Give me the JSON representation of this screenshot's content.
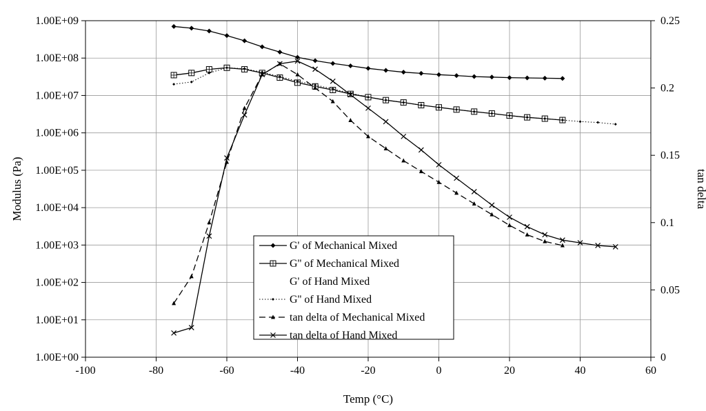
{
  "chart_data": {
    "type": "line",
    "title": "",
    "xlabel": "Temp (°C)",
    "ylabel": "Modulus (Pa)",
    "y2label": "tan delta",
    "xlim": [
      -100,
      60
    ],
    "ylim": [
      1,
      1000000000
    ],
    "y2lim": [
      0,
      0.25
    ],
    "yscale": "log",
    "grid": true,
    "legend_position": "center-left",
    "x_ticks": [
      -100,
      -80,
      -60,
      -40,
      -20,
      0,
      20,
      40,
      60
    ],
    "x_tick_labels": [
      "-100",
      "-80",
      "-60",
      "-40",
      "-20",
      "0",
      "20",
      "40",
      "60"
    ],
    "y_ticks": [
      1,
      10,
      100,
      1000,
      10000,
      100000,
      1000000,
      10000000,
      100000000,
      1000000000
    ],
    "y_tick_labels": [
      "1.00E+00",
      "1.00E+01",
      "1.00E+02",
      "1.00E+03",
      "1.00E+04",
      "1.00E+05",
      "1.00E+06",
      "1.00E+07",
      "1.00E+08",
      "1.00E+09"
    ],
    "y2_ticks": [
      0,
      0.05,
      0.1,
      0.15,
      0.2,
      0.25
    ],
    "y2_tick_labels": [
      "0",
      "0.05",
      "0.1",
      "0.15",
      "0.2",
      "0.25"
    ],
    "series": [
      {
        "name": "G' of Mechanical Mixed",
        "axis": "left",
        "marker": "diamond",
        "line": "solid",
        "x": [
          -75,
          -70,
          -65,
          -60,
          -55,
          -50,
          -45,
          -40,
          -35,
          -30,
          -25,
          -20,
          -15,
          -10,
          -5,
          0,
          5,
          10,
          15,
          20,
          25,
          30,
          35
        ],
        "y": [
          700000000,
          630000000,
          530000000,
          400000000,
          290000000,
          200000000,
          145000000,
          105000000,
          85000000,
          72000000,
          62000000,
          53000000,
          47000000,
          42000000,
          39000000,
          36000000,
          34000000,
          32000000,
          31000000,
          30000000,
          29500000,
          29000000,
          28500000
        ]
      },
      {
        "name": "G'' of Mechanical Mixed",
        "axis": "left",
        "marker": "square",
        "line": "solid",
        "x": [
          -75,
          -70,
          -65,
          -60,
          -55,
          -50,
          -45,
          -40,
          -35,
          -30,
          -25,
          -20,
          -15,
          -10,
          -5,
          0,
          5,
          10,
          15,
          20,
          25,
          30,
          35
        ],
        "y": [
          35000000,
          40000000,
          50000000,
          55000000,
          50000000,
          40000000,
          30000000,
          22000000,
          17500000,
          14000000,
          11000000,
          9000000,
          7500000,
          6500000,
          5500000,
          4800000,
          4200000,
          3700000,
          3300000,
          2900000,
          2600000,
          2400000,
          2200000
        ]
      },
      {
        "name": "G' of Hand Mixed",
        "axis": "left",
        "marker": "none",
        "line": "none",
        "x": [],
        "y": []
      },
      {
        "name": "G'' of Hand Mixed",
        "axis": "left",
        "marker": "small-diamond",
        "line": "dotted",
        "x": [
          -75,
          -70,
          -65,
          -60,
          -55,
          -50,
          -45,
          -40,
          -35,
          -30,
          -25,
          -20,
          -15,
          -10,
          -5,
          0,
          5,
          10,
          15,
          20,
          25,
          30,
          35,
          40,
          45,
          50
        ],
        "y": [
          20000000,
          23000000,
          40000000,
          55000000,
          52000000,
          42000000,
          32000000,
          24000000,
          19000000,
          15000000,
          11500000,
          9000000,
          7500000,
          6500000,
          5500000,
          4800000,
          4200000,
          3700000,
          3300000,
          2900000,
          2600000,
          2400000,
          2200000,
          2000000,
          1900000,
          1700000
        ]
      },
      {
        "name": "tan delta of Mechanical Mixed",
        "axis": "right",
        "marker": "triangle",
        "line": "dashed",
        "x": [
          -75,
          -70,
          -65,
          -60,
          -55,
          -50,
          -45,
          -40,
          -35,
          -30,
          -25,
          -20,
          -15,
          -10,
          -5,
          0,
          5,
          10,
          15,
          20,
          25,
          30,
          35
        ],
        "y": [
          0.04,
          0.06,
          0.1,
          0.145,
          0.185,
          0.21,
          0.218,
          0.21,
          0.2,
          0.19,
          0.176,
          0.164,
          0.155,
          0.146,
          0.138,
          0.13,
          0.122,
          0.114,
          0.106,
          0.098,
          0.091,
          0.086,
          0.083
        ]
      },
      {
        "name": "tan delta of Hand Mixed",
        "axis": "right",
        "marker": "x",
        "line": "solid",
        "x": [
          -75,
          -70,
          -65,
          -60,
          -55,
          -50,
          -45,
          -40,
          -35,
          -30,
          -25,
          -20,
          -15,
          -10,
          -5,
          0,
          5,
          10,
          15,
          20,
          25,
          30,
          35,
          40,
          45,
          50
        ],
        "y": [
          0.018,
          0.022,
          0.09,
          0.148,
          0.18,
          0.21,
          0.218,
          0.22,
          0.214,
          0.205,
          0.195,
          0.185,
          0.175,
          0.164,
          0.154,
          0.143,
          0.133,
          0.123,
          0.113,
          0.104,
          0.097,
          0.091,
          0.087,
          0.085,
          0.083,
          0.082
        ]
      }
    ]
  }
}
